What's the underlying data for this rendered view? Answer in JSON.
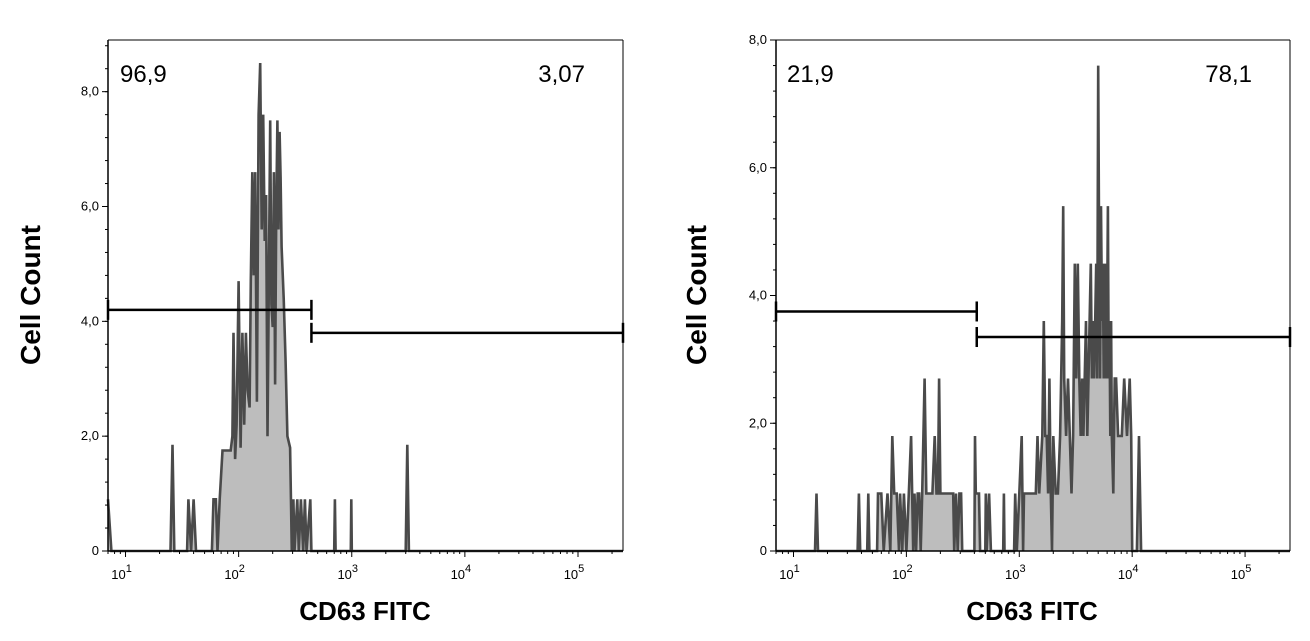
{
  "chart_data": [
    {
      "type": "area",
      "xlabel": "CD63 FITC",
      "ylabel": "Cell Count",
      "x_scale": "log",
      "xlim": [
        7,
        250000
      ],
      "ylim": [
        0,
        8.9
      ],
      "y_ticks": [
        0,
        2,
        4,
        6,
        8
      ],
      "y_tick_labels": [
        "0",
        "2,0",
        "4,0",
        "6,0",
        "8,0"
      ],
      "x_ticks": [
        10,
        100,
        1000,
        10000,
        100000
      ],
      "x_tick_mantissa": [
        "10",
        "10",
        "10",
        "10",
        "10"
      ],
      "x_tick_exponent": [
        "1",
        "2",
        "3",
        "4",
        "5"
      ],
      "fill_color": "#bdbdbd",
      "line_color": "#4a4a4a",
      "gates": [
        {
          "label": "96,9",
          "x_start": 7,
          "x_end": 440,
          "y": 4.2,
          "label_position": "top-left"
        },
        {
          "label": "3,07",
          "x_start": 440,
          "x_end": 250000,
          "y": 3.8,
          "label_position": "top-right"
        }
      ],
      "points": [
        [
          7,
          0.9
        ],
        [
          7.5,
          0
        ],
        [
          25,
          0
        ],
        [
          26,
          1.85
        ],
        [
          27,
          0
        ],
        [
          35,
          0
        ],
        [
          36,
          0.9
        ],
        [
          38,
          0
        ],
        [
          40,
          0.9
        ],
        [
          42,
          0
        ],
        [
          58,
          0
        ],
        [
          60,
          0.9
        ],
        [
          63,
          0.9
        ],
        [
          65,
          0
        ],
        [
          68,
          0.9
        ],
        [
          72,
          1.75
        ],
        [
          85,
          1.75
        ],
        [
          88,
          2.0
        ],
        [
          90,
          3.8
        ],
        [
          93,
          1.6
        ],
        [
          96,
          2.2
        ],
        [
          100,
          4.7
        ],
        [
          104,
          1.8
        ],
        [
          108,
          3.8
        ],
        [
          112,
          2.2
        ],
        [
          116,
          3.8
        ],
        [
          120,
          2.8
        ],
        [
          125,
          2.5
        ],
        [
          128,
          4.7
        ],
        [
          132,
          6.6
        ],
        [
          136,
          4.8
        ],
        [
          140,
          6.6
        ],
        [
          145,
          2.6
        ],
        [
          150,
          7.6
        ],
        [
          155,
          8.5
        ],
        [
          160,
          5.6
        ],
        [
          165,
          7.6
        ],
        [
          170,
          5.4
        ],
        [
          175,
          6.2
        ],
        [
          180,
          2.0
        ],
        [
          185,
          4.8
        ],
        [
          190,
          7.5
        ],
        [
          195,
          4.3
        ],
        [
          200,
          3.9
        ],
        [
          205,
          6.6
        ],
        [
          210,
          2.9
        ],
        [
          215,
          5.8
        ],
        [
          220,
          7.5
        ],
        [
          225,
          5.6
        ],
        [
          230,
          7.3
        ],
        [
          235,
          6.5
        ],
        [
          240,
          5.3
        ],
        [
          250,
          4.4
        ],
        [
          260,
          3.3
        ],
        [
          270,
          2.0
        ],
        [
          285,
          1.8
        ],
        [
          295,
          0
        ],
        [
          305,
          0.9
        ],
        [
          312,
          0
        ],
        [
          330,
          0.9
        ],
        [
          340,
          0
        ],
        [
          355,
          0.9
        ],
        [
          372,
          0
        ],
        [
          385,
          0.9
        ],
        [
          398,
          0
        ],
        [
          430,
          0.9
        ],
        [
          440,
          0
        ],
        [
          700,
          0
        ],
        [
          710,
          0.9
        ],
        [
          720,
          0
        ],
        [
          980,
          0
        ],
        [
          990,
          0.9
        ],
        [
          1000,
          0
        ],
        [
          3000,
          0
        ],
        [
          3100,
          1.85
        ],
        [
          3200,
          0
        ],
        [
          250000,
          0
        ]
      ]
    },
    {
      "type": "area",
      "xlabel": "CD63 FITC",
      "ylabel": "Cell Count",
      "x_scale": "log",
      "xlim": [
        7,
        250000
      ],
      "ylim": [
        0,
        8.0
      ],
      "y_ticks": [
        0,
        2,
        4,
        6,
        8
      ],
      "y_tick_labels": [
        "0",
        "2,0",
        "4,0",
        "6,0",
        "8,0"
      ],
      "x_ticks": [
        10,
        100,
        1000,
        10000,
        100000
      ],
      "x_tick_mantissa": [
        "10",
        "10",
        "10",
        "10",
        "10"
      ],
      "x_tick_exponent": [
        "1",
        "2",
        "3",
        "4",
        "5"
      ],
      "fill_color": "#bdbdbd",
      "line_color": "#4a4a4a",
      "gates": [
        {
          "label": "21,9",
          "x_start": 7,
          "x_end": 420,
          "y": 3.75,
          "label_position": "top-left"
        },
        {
          "label": "78,1",
          "x_start": 420,
          "x_end": 250000,
          "y": 3.35,
          "label_position": "top-right"
        }
      ],
      "points": [
        [
          7,
          0
        ],
        [
          15.5,
          0
        ],
        [
          16,
          0.9
        ],
        [
          16.5,
          0
        ],
        [
          37,
          0
        ],
        [
          38,
          0.9
        ],
        [
          39,
          0
        ],
        [
          45,
          0
        ],
        [
          46,
          0.9
        ],
        [
          47,
          0
        ],
        [
          55,
          0
        ],
        [
          56,
          0.9
        ],
        [
          60,
          0.9
        ],
        [
          63,
          0
        ],
        [
          68,
          0.9
        ],
        [
          72,
          0
        ],
        [
          75,
          1.8
        ],
        [
          78,
          0.9
        ],
        [
          82,
          0.9
        ],
        [
          86,
          0
        ],
        [
          88,
          0.9
        ],
        [
          92,
          0
        ],
        [
          95,
          0.9
        ],
        [
          100,
          0
        ],
        [
          105,
          0.9
        ],
        [
          110,
          1.8
        ],
        [
          115,
          0
        ],
        [
          118,
          0.9
        ],
        [
          122,
          0
        ],
        [
          126,
          0.9
        ],
        [
          130,
          0.9
        ],
        [
          134,
          0
        ],
        [
          138,
          0.9
        ],
        [
          145,
          2.7
        ],
        [
          150,
          0.9
        ],
        [
          155,
          0.9
        ],
        [
          160,
          0.9
        ],
        [
          170,
          0.9
        ],
        [
          178,
          1.8
        ],
        [
          185,
          0.9
        ],
        [
          190,
          0.9
        ],
        [
          195,
          2.7
        ],
        [
          200,
          0.9
        ],
        [
          205,
          0.9
        ],
        [
          210,
          0.9
        ],
        [
          260,
          0.9
        ],
        [
          265,
          0
        ],
        [
          275,
          0.9
        ],
        [
          285,
          0
        ],
        [
          295,
          0.9
        ],
        [
          305,
          0.9
        ],
        [
          312,
          0
        ],
        [
          400,
          0
        ],
        [
          405,
          1.8
        ],
        [
          412,
          0.9
        ],
        [
          416,
          0.9
        ],
        [
          440,
          0.9
        ],
        [
          450,
          0
        ],
        [
          500,
          0
        ],
        [
          505,
          0.9
        ],
        [
          515,
          0
        ],
        [
          540,
          0.9
        ],
        [
          560,
          0
        ],
        [
          720,
          0
        ],
        [
          730,
          0.9
        ],
        [
          740,
          0
        ],
        [
          900,
          0
        ],
        [
          920,
          0.9
        ],
        [
          950,
          0
        ],
        [
          1000,
          0.9
        ],
        [
          1050,
          1.8
        ],
        [
          1080,
          0
        ],
        [
          1100,
          0.9
        ],
        [
          1200,
          0.9
        ],
        [
          1300,
          0.9
        ],
        [
          1400,
          0.9
        ],
        [
          1450,
          1.8
        ],
        [
          1500,
          0.9
        ],
        [
          1600,
          1.8
        ],
        [
          1650,
          3.6
        ],
        [
          1700,
          1.8
        ],
        [
          1750,
          1.8
        ],
        [
          1800,
          0.9
        ],
        [
          1850,
          2.7
        ],
        [
          1900,
          0.9
        ],
        [
          1950,
          0
        ],
        [
          2000,
          1.8
        ],
        [
          2100,
          0.9
        ],
        [
          2200,
          0.9
        ],
        [
          2300,
          1.8
        ],
        [
          2400,
          3.6
        ],
        [
          2450,
          5.4
        ],
        [
          2500,
          2.7
        ],
        [
          2600,
          1.8
        ],
        [
          2700,
          2.7
        ],
        [
          2800,
          1.8
        ],
        [
          2900,
          0.9
        ],
        [
          3000,
          1.8
        ],
        [
          3100,
          4.5
        ],
        [
          3200,
          2.7
        ],
        [
          3300,
          4.5
        ],
        [
          3400,
          2.7
        ],
        [
          3500,
          1.8
        ],
        [
          3600,
          2.7
        ],
        [
          3700,
          1.8
        ],
        [
          3800,
          2.7
        ],
        [
          3900,
          3.6
        ],
        [
          4000,
          1.8
        ],
        [
          4100,
          2.7
        ],
        [
          4200,
          3.6
        ],
        [
          4300,
          4.5
        ],
        [
          4400,
          2.7
        ],
        [
          4500,
          3.6
        ],
        [
          4600,
          2.7
        ],
        [
          4700,
          3.6
        ],
        [
          4800,
          4.5
        ],
        [
          4900,
          2.7
        ],
        [
          5000,
          7.6
        ],
        [
          5100,
          4.5
        ],
        [
          5200,
          2.7
        ],
        [
          5300,
          5.4
        ],
        [
          5400,
          3.6
        ],
        [
          5500,
          4.5
        ],
        [
          5600,
          2.7
        ],
        [
          5700,
          3.6
        ],
        [
          5800,
          4.5
        ],
        [
          5900,
          2.7
        ],
        [
          6000,
          3.6
        ],
        [
          6100,
          5.4
        ],
        [
          6200,
          2.7
        ],
        [
          6300,
          3.6
        ],
        [
          6400,
          1.8
        ],
        [
          6500,
          3.6
        ],
        [
          6600,
          1.8
        ],
        [
          6800,
          0.9
        ],
        [
          7000,
          2.7
        ],
        [
          7200,
          2.7
        ],
        [
          7500,
          1.8
        ],
        [
          7800,
          1.8
        ],
        [
          8100,
          1.8
        ],
        [
          8500,
          2.7
        ],
        [
          9000,
          1.8
        ],
        [
          9500,
          2.7
        ],
        [
          9800,
          1.8
        ],
        [
          10000,
          0
        ],
        [
          11000,
          0
        ],
        [
          11500,
          1.8
        ],
        [
          12000,
          0
        ],
        [
          250000,
          0
        ]
      ]
    }
  ]
}
